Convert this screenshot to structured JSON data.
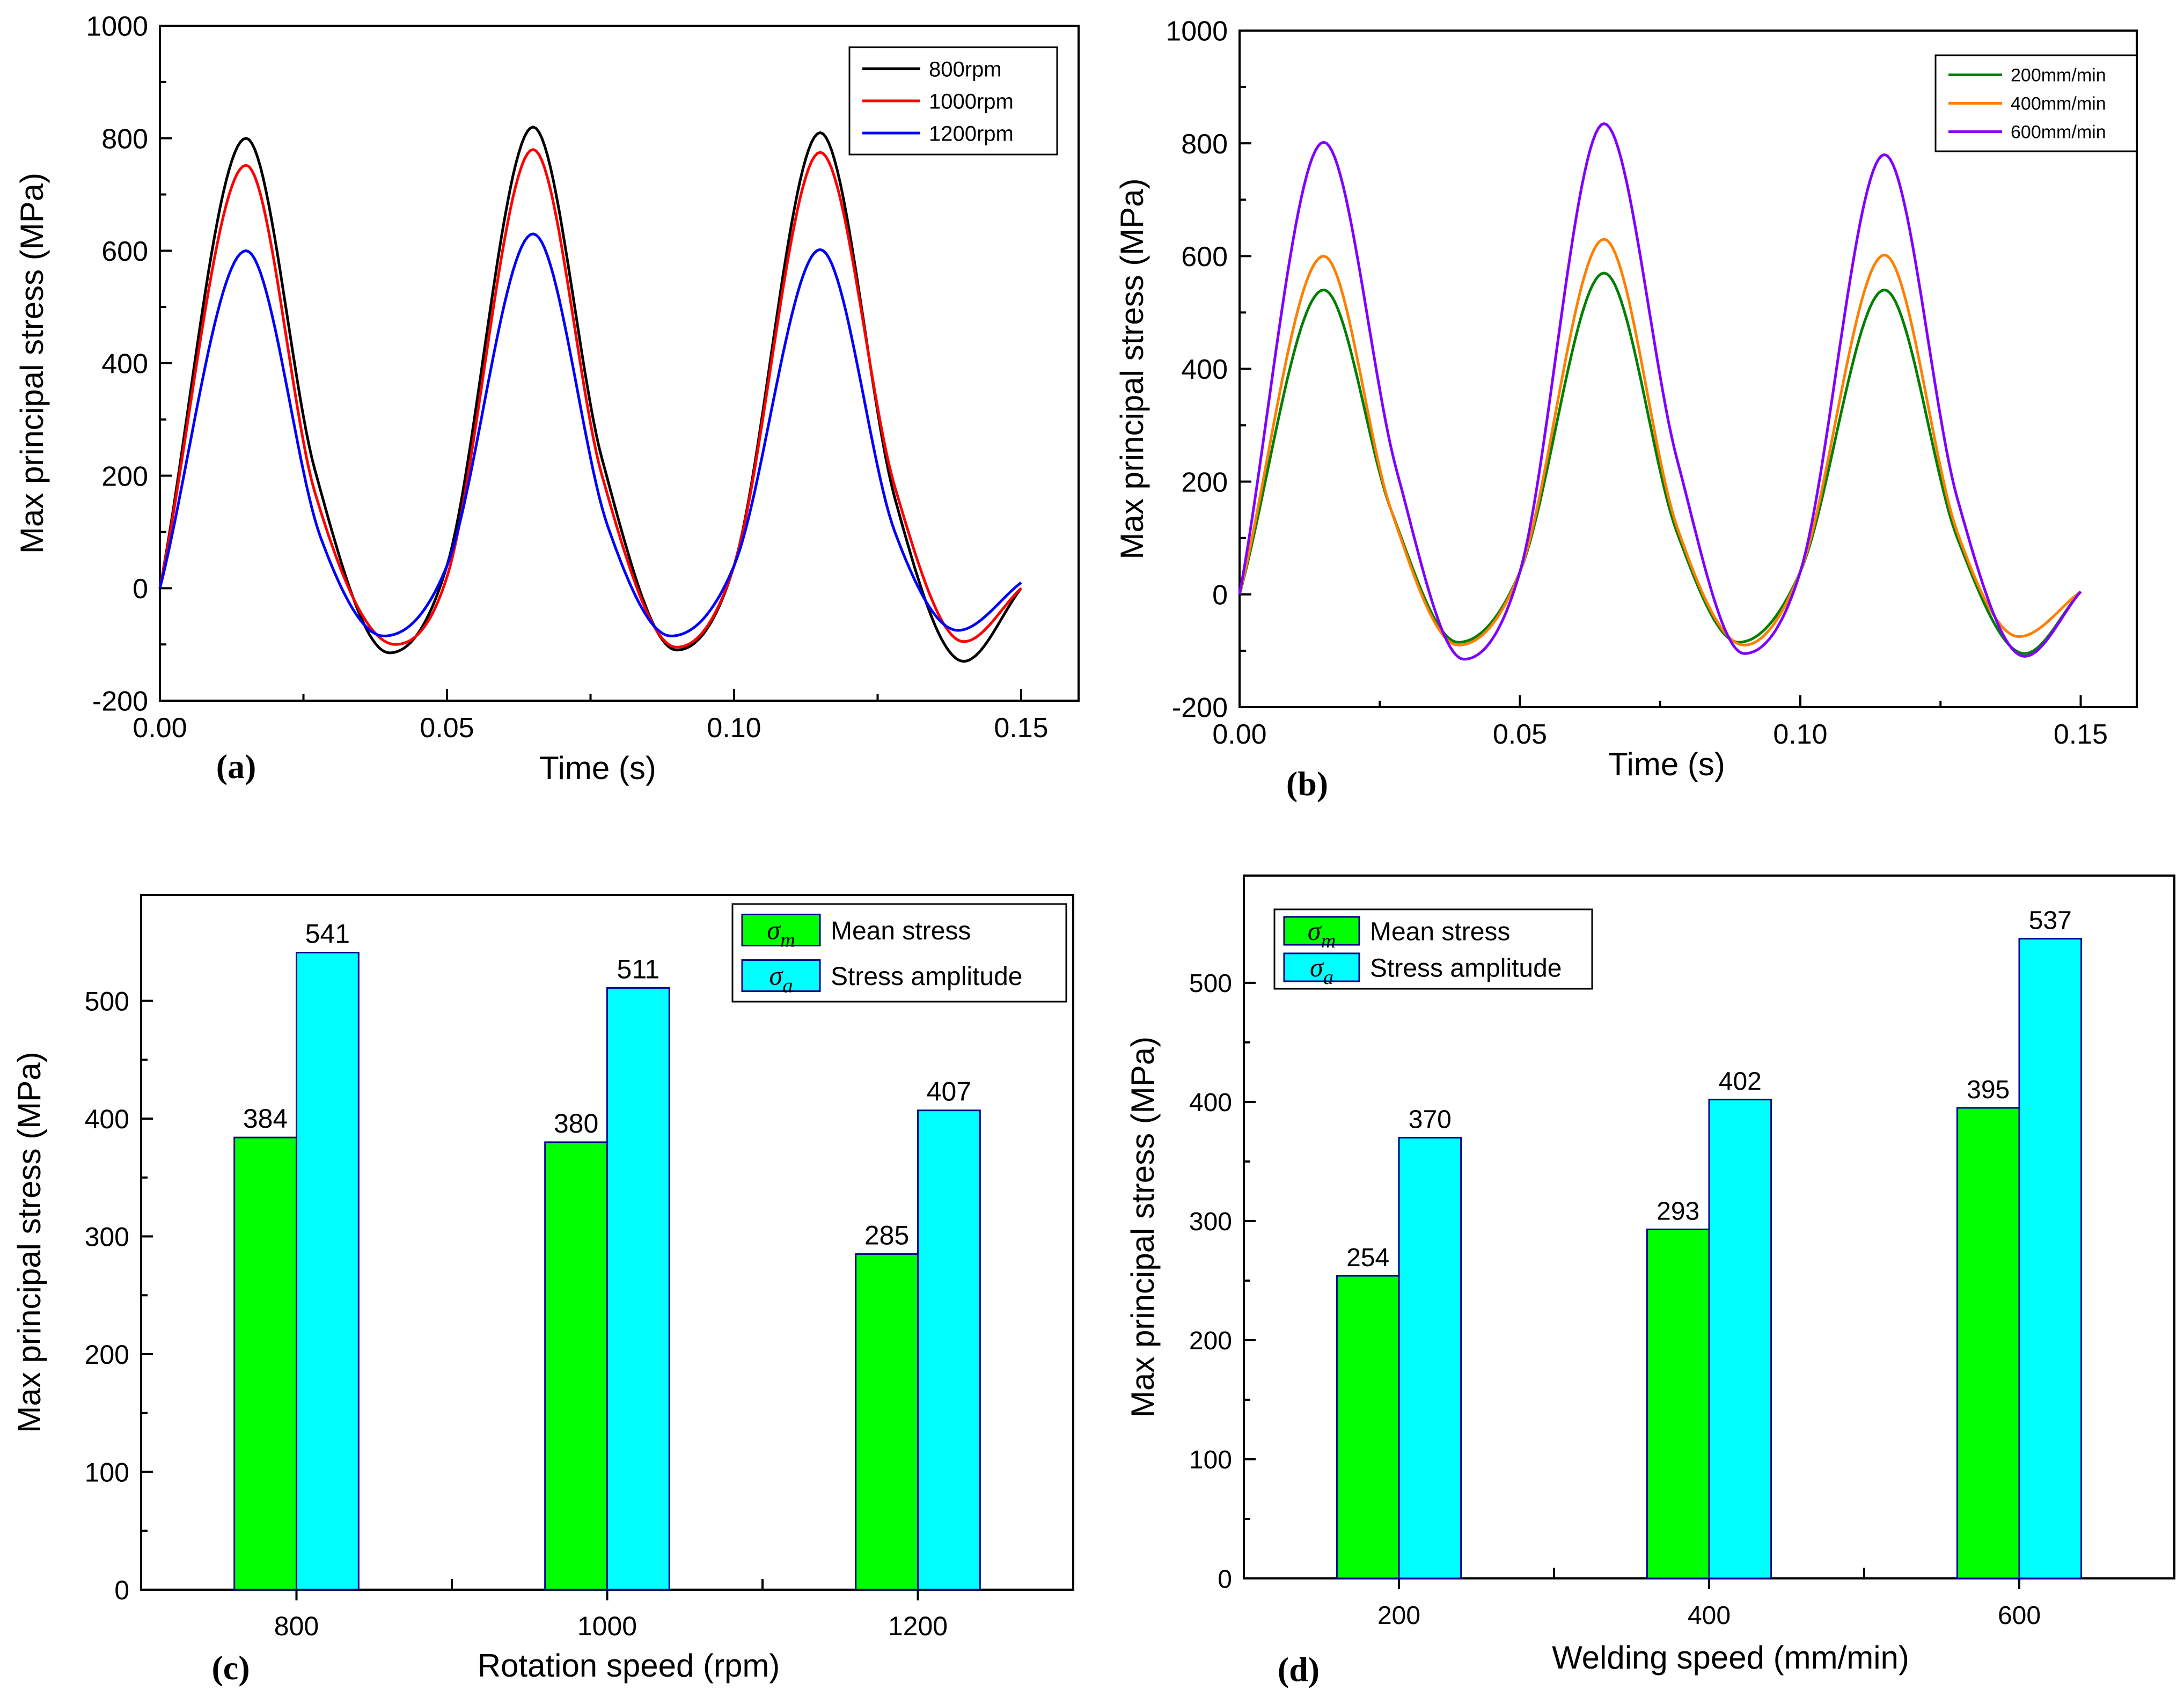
{
  "chart_data": [
    {
      "panel": "(a)",
      "type": "line",
      "xlabel": "Time (s)",
      "ylabel": "Max principal stress (MPa)",
      "xlim": [
        0,
        0.16
      ],
      "ylim": [
        -200,
        1000
      ],
      "xticks": [
        0,
        0.05,
        0.1,
        0.15
      ],
      "xtick_labels": [
        "0.00",
        "0.05",
        "0.10",
        "0.15"
      ],
      "yticks": [
        -200,
        0,
        200,
        400,
        600,
        800,
        1000
      ],
      "ytick_labels": [
        "-200",
        "0",
        "200",
        "400",
        "600",
        "800",
        "1000"
      ],
      "legend_position": "top-right",
      "series": [
        {
          "name": "800rpm",
          "color": "#000000",
          "x": [
            0,
            0.015,
            0.027,
            0.04,
            0.05,
            0.065,
            0.077,
            0.09,
            0.1,
            0.115,
            0.128,
            0.14,
            0.15
          ],
          "y": [
            0,
            800,
            210,
            -115,
            40,
            820,
            230,
            -110,
            40,
            810,
            160,
            -130,
            0
          ]
        },
        {
          "name": "1000rpm",
          "color": "#ff0000",
          "x": [
            0,
            0.015,
            0.027,
            0.041,
            0.05,
            0.065,
            0.077,
            0.09,
            0.1,
            0.115,
            0.128,
            0.14,
            0.15
          ],
          "y": [
            0,
            752,
            170,
            -100,
            20,
            780,
            200,
            -105,
            40,
            775,
            180,
            -95,
            0
          ]
        },
        {
          "name": "1200rpm",
          "color": "#0000ff",
          "x": [
            0,
            0.015,
            0.028,
            0.039,
            0.05,
            0.065,
            0.078,
            0.089,
            0.1,
            0.115,
            0.128,
            0.139,
            0.15
          ],
          "y": [
            0,
            600,
            90,
            -85,
            40,
            630,
            110,
            -85,
            40,
            602,
            100,
            -75,
            10
          ]
        }
      ]
    },
    {
      "panel": "(b)",
      "type": "line",
      "xlabel": "Time (s)",
      "ylabel": "Max principal stress (MPa)",
      "xlim": [
        0,
        0.16
      ],
      "ylim": [
        -200,
        1000
      ],
      "xticks": [
        0,
        0.05,
        0.1,
        0.15
      ],
      "xtick_labels": [
        "0.00",
        "0.05",
        "0.10",
        "0.15"
      ],
      "yticks": [
        -200,
        0,
        200,
        400,
        600,
        800,
        1000
      ],
      "ytick_labels": [
        "-200",
        "0",
        "200",
        "400",
        "600",
        "800",
        "1000"
      ],
      "legend_position": "top-right",
      "series": [
        {
          "name": "200mm/min",
          "color": "#007f00",
          "x": [
            0,
            0.015,
            0.027,
            0.039,
            0.05,
            0.065,
            0.078,
            0.089,
            0.1,
            0.115,
            0.128,
            0.14,
            0.15
          ],
          "y": [
            0,
            540,
            150,
            -85,
            40,
            570,
            110,
            -85,
            40,
            540,
            100,
            -105,
            5
          ]
        },
        {
          "name": "400mm/min",
          "color": "#ff7f00",
          "x": [
            0,
            0.015,
            0.027,
            0.039,
            0.05,
            0.065,
            0.078,
            0.09,
            0.1,
            0.115,
            0.128,
            0.139,
            0.15
          ],
          "y": [
            0,
            600,
            150,
            -90,
            40,
            630,
            120,
            -90,
            40,
            602,
            110,
            -75,
            5
          ]
        },
        {
          "name": "600mm/min",
          "color": "#8000ff",
          "x": [
            0,
            0.015,
            0.028,
            0.04,
            0.05,
            0.065,
            0.078,
            0.09,
            0.1,
            0.115,
            0.128,
            0.14,
            0.15
          ],
          "y": [
            0,
            802,
            220,
            -115,
            40,
            835,
            240,
            -105,
            40,
            780,
            170,
            -110,
            5
          ]
        }
      ]
    },
    {
      "panel": "(c)",
      "type": "bar",
      "xlabel": "Rotation speed (rpm)",
      "ylabel": "Max principal stress (MPa)",
      "categories": [
        "800",
        "1000",
        "1200"
      ],
      "ylim": [
        0,
        590
      ],
      "yticks": [
        0,
        100,
        200,
        300,
        400,
        500
      ],
      "ytick_labels": [
        "0",
        "100",
        "200",
        "300",
        "400",
        "500"
      ],
      "legend_position": "top-right",
      "series": [
        {
          "name": "Mean stress",
          "symbol_letter": "σ",
          "symbol_sub": "m",
          "color": "#00ff00",
          "values": [
            384,
            380,
            285
          ],
          "labels": [
            "384",
            "380",
            "285"
          ]
        },
        {
          "name": "Stress amplitude",
          "symbol_letter": "σ",
          "symbol_sub": "a",
          "color": "#00ffff",
          "values": [
            541,
            511,
            407
          ],
          "labels": [
            "541",
            "511",
            "407"
          ]
        }
      ]
    },
    {
      "panel": "(d)",
      "type": "bar",
      "xlabel": "Welding speed (mm/min)",
      "ylabel": "Max principal stress (MPa)",
      "categories": [
        "200",
        "400",
        "600"
      ],
      "ylim": [
        0,
        590
      ],
      "yticks": [
        0,
        100,
        200,
        300,
        400,
        500
      ],
      "ytick_labels": [
        "0",
        "100",
        "200",
        "300",
        "400",
        "500"
      ],
      "legend_position": "top-left",
      "series": [
        {
          "name": "Mean stress",
          "symbol_letter": "σ",
          "symbol_sub": "m",
          "color": "#00ff00",
          "values": [
            254,
            293,
            395
          ],
          "labels": [
            "254",
            "293",
            "395"
          ]
        },
        {
          "name": "Stress amplitude",
          "symbol_letter": "σ",
          "symbol_sub": "a",
          "color": "#00ffff",
          "values": [
            370,
            402,
            537
          ],
          "labels": [
            "370",
            "402",
            "537"
          ]
        }
      ]
    }
  ]
}
